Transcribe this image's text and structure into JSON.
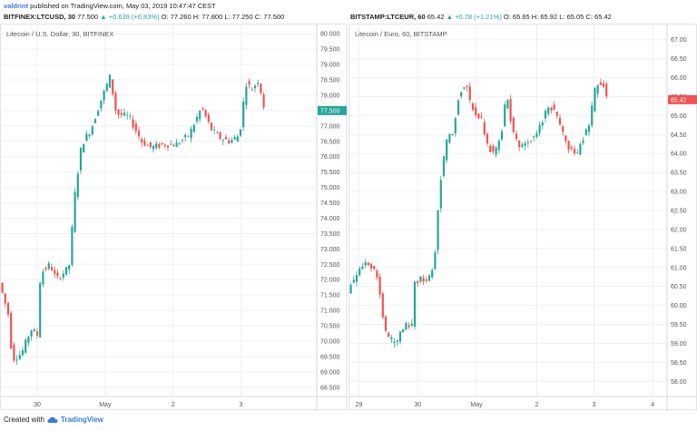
{
  "header": {
    "user": "valdrint",
    "published": " published on TradingView.com, May 03, 2019 10:47:47 CEST",
    "left_ohlc": {
      "symbol": "BITFINEX:LTCUSD, 30",
      "last": "77.500",
      "change": "▲ +0.639 (+0.83%)",
      "o": "O: 77.260",
      "h": "H: 77.800",
      "l": "L: 77.250",
      "c": "C: 77.500"
    },
    "right_ohlc": {
      "symbol": "BITSTAMP:LTCEUR, 60",
      "last": "65.42",
      "change": "▲ +0.78 (+1.21%)",
      "o": "O: 65.65",
      "h": "H: 65.92",
      "l": "L: 65.05",
      "c": "C: 65.42"
    }
  },
  "footer": {
    "prefix": "Created with",
    "brand": "TradingView"
  },
  "colors": {
    "up": "#26a69a",
    "down": "#ef5350",
    "grid": "#eef0f4",
    "axis_text": "#555555",
    "price_label_left": "#26a69a",
    "price_label_right": "#ef5350"
  },
  "chart_data": [
    {
      "type": "candlestick",
      "title": "Litecoin / U.S. Dollar, 30, BITFINEX",
      "ylim": [
        68.2,
        80.3
      ],
      "y_ticks": [
        "68.500",
        "69.000",
        "69.500",
        "70.000",
        "70.500",
        "71.000",
        "71.500",
        "72.000",
        "72.500",
        "73.000",
        "73.500",
        "74.000",
        "74.500",
        "75.000",
        "75.500",
        "76.000",
        "76.500",
        "77.000",
        "77.500",
        "78.000",
        "78.500",
        "79.000",
        "79.500",
        "80.000"
      ],
      "x_ticks": [
        "30",
        "May",
        "2",
        "3"
      ],
      "x_tick_pos": [
        0.115,
        0.33,
        0.545,
        0.76
      ],
      "last_price": "77.500",
      "waypoints": [
        [
          0,
          71.9
        ],
        [
          0.03,
          70.8
        ],
        [
          0.04,
          69.4
        ],
        [
          0.07,
          69.6
        ],
        [
          0.1,
          70.4
        ],
        [
          0.12,
          70.2
        ],
        [
          0.13,
          72.2
        ],
        [
          0.16,
          72.5
        ],
        [
          0.18,
          72.0
        ],
        [
          0.22,
          72.4
        ],
        [
          0.24,
          74.9
        ],
        [
          0.26,
          76.4
        ],
        [
          0.29,
          76.9
        ],
        [
          0.32,
          77.8
        ],
        [
          0.35,
          78.6
        ],
        [
          0.37,
          77.4
        ],
        [
          0.41,
          77.3
        ],
        [
          0.45,
          76.5
        ],
        [
          0.48,
          76.3
        ],
        [
          0.52,
          76.4
        ],
        [
          0.56,
          76.4
        ],
        [
          0.6,
          76.7
        ],
        [
          0.64,
          77.6
        ],
        [
          0.67,
          76.9
        ],
        [
          0.7,
          76.6
        ],
        [
          0.73,
          76.5
        ],
        [
          0.76,
          76.7
        ],
        [
          0.78,
          78.4
        ],
        [
          0.8,
          78.2
        ],
        [
          0.82,
          78.5
        ],
        [
          0.84,
          77.5
        ]
      ]
    },
    {
      "type": "candlestick",
      "title": "Litecoin / Euro, 60, BITSTAMP",
      "ylim": [
        57.6,
        67.4
      ],
      "y_ticks": [
        "58.00",
        "58.50",
        "59.00",
        "59.50",
        "60.00",
        "60.50",
        "61.00",
        "61.50",
        "62.00",
        "62.50",
        "63.00",
        "63.50",
        "64.00",
        "64.50",
        "65.00",
        "65.50",
        "66.00",
        "66.50",
        "67.00"
      ],
      "x_ticks": [
        "29",
        "30",
        "May",
        "2",
        "3",
        "4"
      ],
      "x_tick_pos": [
        0.03,
        0.215,
        0.4,
        0.59,
        0.77,
        0.955
      ],
      "last_price": "65.42",
      "waypoints": [
        [
          0,
          60.4
        ],
        [
          0.03,
          60.9
        ],
        [
          0.06,
          61.2
        ],
        [
          0.09,
          60.8
        ],
        [
          0.12,
          59.2
        ],
        [
          0.15,
          59.0
        ],
        [
          0.18,
          59.5
        ],
        [
          0.2,
          59.3
        ],
        [
          0.21,
          60.6
        ],
        [
          0.23,
          60.7
        ],
        [
          0.25,
          60.6
        ],
        [
          0.27,
          61.0
        ],
        [
          0.29,
          63.2
        ],
        [
          0.31,
          64.3
        ],
        [
          0.33,
          64.6
        ],
        [
          0.35,
          65.6
        ],
        [
          0.37,
          65.9
        ],
        [
          0.39,
          65.2
        ],
        [
          0.42,
          64.9
        ],
        [
          0.44,
          64.2
        ],
        [
          0.46,
          64.0
        ],
        [
          0.48,
          64.4
        ],
        [
          0.5,
          65.6
        ],
        [
          0.52,
          64.5
        ],
        [
          0.54,
          64.2
        ],
        [
          0.57,
          64.3
        ],
        [
          0.6,
          64.6
        ],
        [
          0.63,
          65.3
        ],
        [
          0.66,
          65.0
        ],
        [
          0.69,
          64.2
        ],
        [
          0.72,
          64.0
        ],
        [
          0.74,
          64.4
        ],
        [
          0.76,
          64.8
        ],
        [
          0.78,
          65.8
        ],
        [
          0.8,
          65.9
        ],
        [
          0.82,
          65.4
        ]
      ]
    }
  ]
}
